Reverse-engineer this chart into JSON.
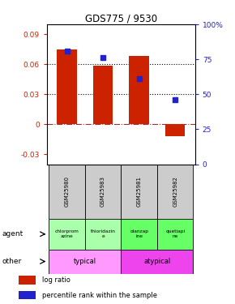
{
  "title": "GDS775 / 9530",
  "samples": [
    "GSM25980",
    "GSM25983",
    "GSM25981",
    "GSM25982"
  ],
  "log_ratios": [
    0.075,
    0.059,
    0.068,
    -0.012
  ],
  "percentile_ranks": [
    0.81,
    0.76,
    0.61,
    0.46
  ],
  "bar_color": "#cc2200",
  "dot_color": "#2222cc",
  "ylim_left": [
    -0.04,
    0.1
  ],
  "ylim_right": [
    0,
    1.0
  ],
  "yticks_left": [
    -0.03,
    0,
    0.03,
    0.06,
    0.09
  ],
  "yticks_right": [
    0,
    0.25,
    0.5,
    0.75,
    1.0
  ],
  "ytick_labels_right": [
    "0",
    "25",
    "50",
    "75",
    "100%"
  ],
  "ytick_labels_left": [
    "-0.03",
    "0",
    "0.03",
    "0.06",
    "0.09"
  ],
  "hlines": [
    0.03,
    0.06
  ],
  "agent_labels": [
    "chlorprom\nazine",
    "thioridazin\ne",
    "olanzap\nine",
    "quetiapi\nne"
  ],
  "agent_colors_typical": "#aaffaa",
  "agent_colors_atypical": "#66ff66",
  "other_label_typical": "typical",
  "other_label_atypical": "atypical",
  "other_color_typical": "#ff99ff",
  "other_color_atypical": "#ee44ee",
  "legend_bar_label": "log ratio",
  "legend_dot_label": "percentile rank within the sample",
  "bar_width": 0.55,
  "sample_bg": "#cccccc",
  "arrow_color": "#555555"
}
